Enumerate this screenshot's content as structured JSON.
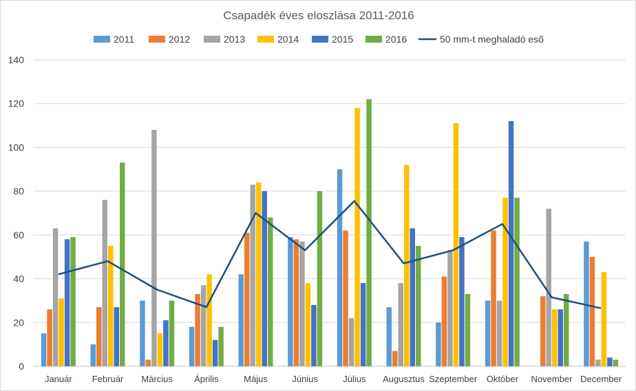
{
  "chart_data": {
    "type": "bar",
    "title": "Csapadék éves eloszlása 2011-2016",
    "xlabel": "",
    "ylabel": "",
    "ylim": [
      0,
      140
    ],
    "yticks": [
      "0",
      "20",
      "40",
      "60",
      "80",
      "100",
      "120",
      "140"
    ],
    "grid": true,
    "legend_position": "top",
    "categories": [
      "Január",
      "Február",
      "Március",
      "Április",
      "Május",
      "Június",
      "Július",
      "Augusztus",
      "Szeptember",
      "Október",
      "November",
      "December"
    ],
    "series": [
      {
        "name": "2011",
        "color": "#5B9BD5",
        "values": [
          15,
          10,
          30,
          18,
          42,
          59,
          90,
          27,
          20,
          30,
          0,
          57
        ]
      },
      {
        "name": "2012",
        "color": "#ED7D31",
        "values": [
          26,
          27,
          3,
          33,
          61,
          58,
          62,
          7,
          41,
          62,
          32,
          50
        ]
      },
      {
        "name": "2013",
        "color": "#A5A5A5",
        "values": [
          63,
          76,
          108,
          37,
          83,
          57,
          22,
          38,
          53,
          30,
          72,
          3
        ]
      },
      {
        "name": "2014",
        "color": "#FFC000",
        "values": [
          31,
          55,
          15,
          42,
          84,
          38,
          118,
          92,
          111,
          77,
          26,
          43
        ]
      },
      {
        "name": "2015",
        "color": "#4472C4",
        "values": [
          58,
          27,
          21,
          12,
          80,
          28,
          38,
          63,
          59,
          112,
          26,
          4
        ]
      },
      {
        "name": "2016",
        "color": "#70AD47",
        "values": [
          59,
          93,
          30,
          18,
          68,
          80,
          122,
          55,
          33,
          77,
          33,
          3
        ]
      }
    ],
    "line_series": {
      "name": "50 mm-t meghaladó eső",
      "color": "#1F4E79",
      "values": [
        42,
        48,
        35,
        27,
        70,
        53,
        75.5,
        47,
        53,
        65,
        31.5,
        26.5
      ]
    }
  }
}
